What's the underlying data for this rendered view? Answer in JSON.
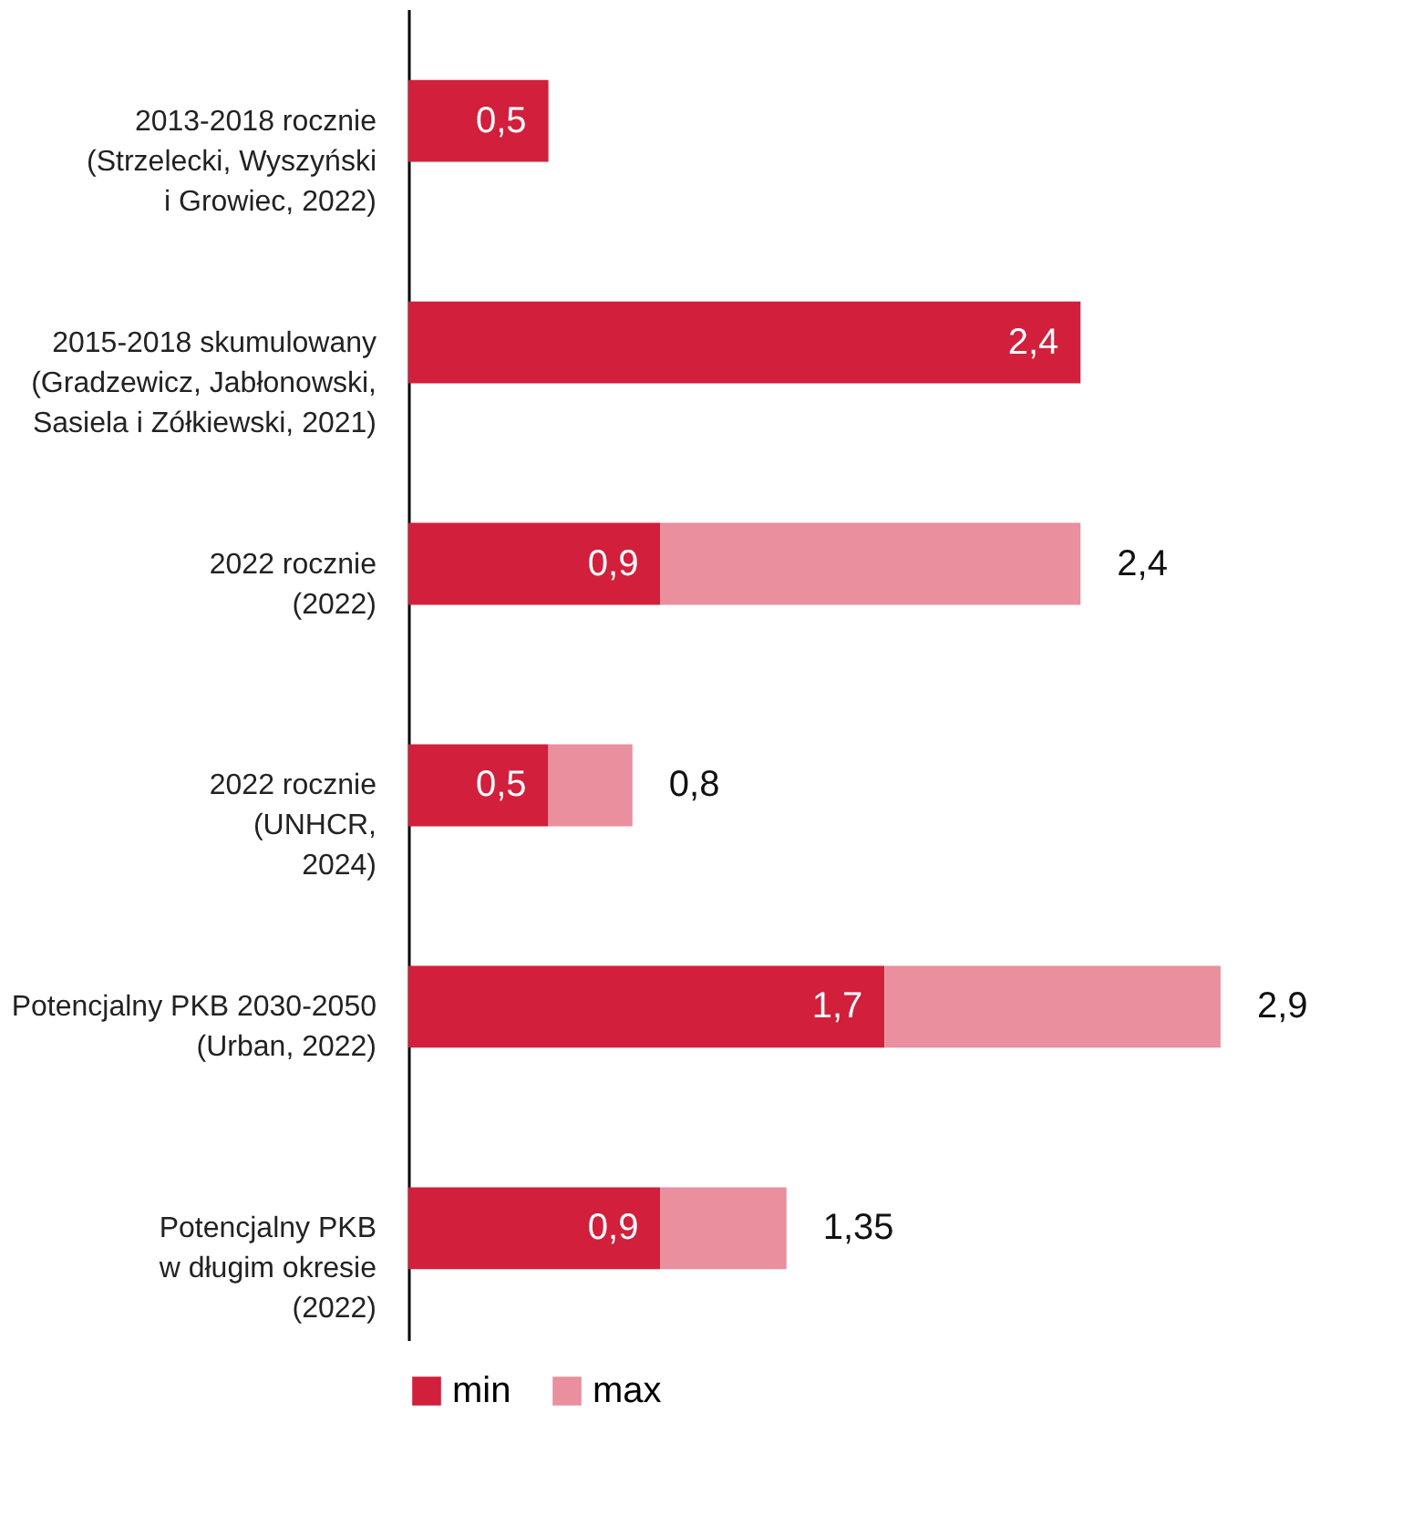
{
  "chart_data": {
    "type": "bar",
    "orientation": "horizontal",
    "stacked": true,
    "legend": "bottom",
    "grid": false,
    "tick_labels": "y",
    "categories": [
      "2013-2018 rocznie\n(Strzelecki, Wyszyński\ni Growiec, 2022)",
      "2015-2018 skumulowany\n(Gradzewicz, Jabłonowski,\nSasiela i Zółkiewski, 2021)",
      "2022 rocznie\n(2022)",
      "2022 rocznie\n(UNHCR,\n2024)",
      "Potencjalny PKB 2030-2050\n(Urban, 2022)",
      "Potencjalny PKB\nw długim okresie\n(2022)"
    ],
    "series": [
      {
        "name": "min",
        "color": "#d21f3c",
        "values": [
          0.5,
          2.4,
          0.9,
          0.5,
          1.7,
          0.9
        ],
        "value_labels": [
          "0,5",
          "2,4",
          "0,9",
          "0,5",
          "1,7",
          "0,9"
        ]
      },
      {
        "name": "max",
        "color": "#e98f9d",
        "values": [
          null,
          null,
          1.5,
          0.3,
          1.2,
          0.45
        ]
      }
    ],
    "totals": [
      null,
      null,
      "2,4",
      "0,8",
      "2,9",
      "1,35"
    ]
  }
}
